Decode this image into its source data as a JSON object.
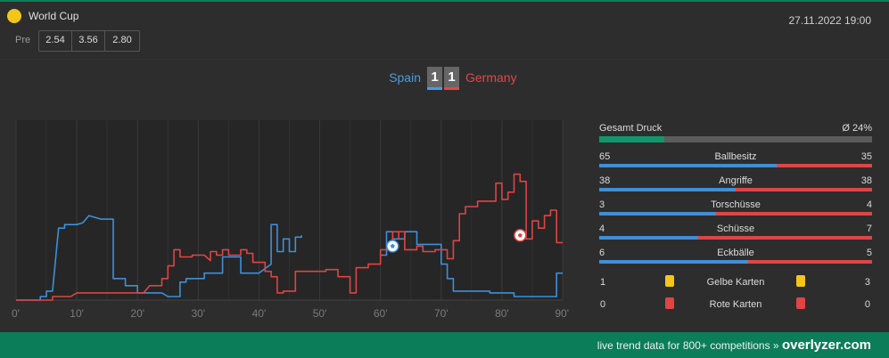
{
  "header": {
    "competition": "World Cup",
    "pre_label": "Pre",
    "odds": [
      "2.54",
      "3.56",
      "2.80"
    ],
    "datetime": "27.11.2022 19:00"
  },
  "match": {
    "home_team": "Spain",
    "away_team": "Germany",
    "home_score": "1",
    "away_score": "1",
    "home_color": "#4a9be0",
    "away_color": "#e04848"
  },
  "chart_data": {
    "type": "line",
    "x_tick_labels": [
      "0'",
      "10'",
      "20'",
      "30'",
      "40'",
      "50'",
      "60'",
      "70'",
      "80'",
      "90'"
    ],
    "xlim": [
      0,
      90
    ],
    "ylim": [
      0,
      100
    ],
    "grid": true,
    "series": [
      {
        "name": "Spain",
        "color": "#3f8fd8",
        "points": [
          [
            0,
            0
          ],
          [
            4,
            0
          ],
          [
            4,
            2
          ],
          [
            5,
            2
          ],
          [
            5,
            5
          ],
          [
            6,
            5
          ],
          [
            7,
            40
          ],
          [
            8,
            40
          ],
          [
            8,
            42
          ],
          [
            10,
            42
          ],
          [
            11,
            43
          ],
          [
            12,
            47
          ],
          [
            13,
            46
          ],
          [
            14,
            45
          ],
          [
            15,
            45
          ],
          [
            16,
            45
          ],
          [
            16,
            12
          ],
          [
            18,
            12
          ],
          [
            18,
            8
          ],
          [
            20,
            8
          ],
          [
            20,
            4
          ],
          [
            21,
            4
          ],
          [
            22,
            4
          ],
          [
            24,
            4
          ],
          [
            25,
            2
          ],
          [
            27,
            2
          ],
          [
            27,
            10
          ],
          [
            28,
            10
          ],
          [
            28,
            12
          ],
          [
            30,
            12
          ],
          [
            31,
            12
          ],
          [
            31,
            15
          ],
          [
            34,
            15
          ],
          [
            34,
            24
          ],
          [
            37,
            24
          ],
          [
            37,
            15
          ],
          [
            40,
            15
          ],
          [
            42,
            20
          ],
          [
            42,
            42
          ],
          [
            43,
            42
          ],
          [
            43,
            27
          ],
          [
            44,
            27
          ],
          [
            44,
            34
          ],
          [
            45,
            34
          ],
          [
            45,
            27
          ],
          [
            46,
            27
          ],
          [
            46,
            35
          ],
          [
            47,
            35
          ],
          [
            47,
            36
          ]
        ]
      },
      {
        "name": "Spain",
        "color": "#3f8fd8",
        "points": [
          [
            60,
            25
          ],
          [
            61,
            25
          ],
          [
            61,
            38
          ],
          [
            62,
            38
          ],
          [
            62,
            34
          ],
          [
            63,
            34
          ],
          [
            63,
            34
          ],
          [
            64,
            34
          ],
          [
            64,
            38
          ],
          [
            66,
            38
          ],
          [
            66,
            31
          ],
          [
            67,
            31
          ],
          [
            67,
            31
          ],
          [
            70,
            31
          ],
          [
            70,
            20
          ],
          [
            71,
            20
          ],
          [
            71,
            12
          ],
          [
            72,
            12
          ],
          [
            72,
            5
          ],
          [
            73,
            5
          ],
          [
            74,
            5
          ],
          [
            78,
            5
          ],
          [
            78,
            4
          ],
          [
            82,
            4
          ],
          [
            82,
            2
          ],
          [
            89,
            2
          ],
          [
            89,
            15
          ],
          [
            90,
            15
          ]
        ]
      },
      {
        "name": "Germany",
        "color": "#e04444",
        "points": [
          [
            0,
            0
          ],
          [
            6,
            0
          ],
          [
            6,
            2
          ],
          [
            9,
            2
          ],
          [
            10,
            4
          ],
          [
            12,
            4
          ],
          [
            14,
            4
          ],
          [
            18,
            4
          ],
          [
            18,
            4
          ],
          [
            21,
            4
          ],
          [
            22,
            8
          ],
          [
            24,
            8
          ],
          [
            24,
            12
          ],
          [
            25,
            12
          ],
          [
            25,
            19
          ],
          [
            26,
            19
          ],
          [
            26,
            28
          ],
          [
            27,
            28
          ],
          [
            27,
            24
          ],
          [
            29,
            24
          ],
          [
            29,
            25
          ],
          [
            30,
            25
          ],
          [
            31,
            25
          ],
          [
            32,
            22
          ],
          [
            32,
            27
          ],
          [
            33,
            27
          ],
          [
            33,
            25
          ],
          [
            34,
            25
          ],
          [
            34,
            28
          ],
          [
            35,
            28
          ],
          [
            35,
            25
          ],
          [
            37,
            25
          ],
          [
            37,
            28
          ],
          [
            38,
            28
          ],
          [
            38,
            26
          ],
          [
            39,
            26
          ],
          [
            39,
            21
          ],
          [
            41,
            21
          ],
          [
            41,
            16
          ],
          [
            42,
            16
          ],
          [
            42,
            13
          ],
          [
            43,
            13
          ],
          [
            43,
            4
          ],
          [
            44,
            4
          ],
          [
            44,
            5
          ],
          [
            46,
            5
          ],
          [
            46,
            16
          ],
          [
            51,
            16
          ],
          [
            51,
            17
          ],
          [
            53,
            17
          ],
          [
            53,
            13
          ],
          [
            55,
            13
          ],
          [
            55,
            4
          ],
          [
            56,
            4
          ],
          [
            56,
            18
          ],
          [
            57,
            18
          ],
          [
            57,
            18
          ],
          [
            58,
            18
          ],
          [
            58,
            20
          ],
          [
            60,
            20
          ],
          [
            60,
            28
          ],
          [
            62,
            28
          ],
          [
            62,
            38
          ],
          [
            63,
            38
          ],
          [
            63,
            34
          ],
          [
            63,
            38
          ],
          [
            64,
            38
          ],
          [
            64,
            28
          ],
          [
            66,
            28
          ],
          [
            66,
            30
          ],
          [
            67,
            30
          ],
          [
            67,
            27
          ],
          [
            69,
            27
          ],
          [
            69,
            28
          ],
          [
            71,
            28
          ],
          [
            71,
            23
          ],
          [
            72,
            23
          ],
          [
            72,
            33
          ],
          [
            73,
            33
          ],
          [
            73,
            48
          ],
          [
            74,
            48
          ],
          [
            74,
            52
          ],
          [
            76,
            52
          ],
          [
            76,
            55
          ],
          [
            77,
            55
          ],
          [
            77,
            55
          ],
          [
            79,
            55
          ],
          [
            79,
            65
          ],
          [
            80,
            65
          ],
          [
            80,
            56
          ],
          [
            81,
            56
          ],
          [
            81,
            60
          ],
          [
            82,
            60
          ],
          [
            82,
            70
          ],
          [
            83,
            70
          ],
          [
            83,
            66
          ],
          [
            84,
            66
          ],
          [
            84,
            34
          ],
          [
            85,
            34
          ],
          [
            85,
            44
          ],
          [
            86,
            44
          ],
          [
            86,
            40
          ],
          [
            87,
            40
          ],
          [
            87,
            47
          ],
          [
            88,
            47
          ],
          [
            88,
            50
          ],
          [
            89,
            50
          ],
          [
            89,
            32
          ],
          [
            90,
            32
          ]
        ]
      }
    ],
    "goals": [
      {
        "team": "Spain",
        "minute": 62,
        "level": 30
      },
      {
        "team": "Germany",
        "minute": 83,
        "level": 36
      }
    ]
  },
  "stats": {
    "pressure": {
      "label": "Gesamt Druck",
      "value": "Ø 24%",
      "fraction": 0.24,
      "color": "#11976b"
    },
    "bars": [
      {
        "name": "Ballbesitz",
        "home": "65",
        "away": "35",
        "home_frac": 0.65
      },
      {
        "name": "Angriffe",
        "home": "38",
        "away": "38",
        "home_frac": 0.5
      },
      {
        "name": "Torschüsse",
        "home": "3",
        "away": "4",
        "home_frac": 0.4286
      },
      {
        "name": "Schüsse",
        "home": "4",
        "away": "7",
        "home_frac": 0.3636
      },
      {
        "name": "Eckbälle",
        "home": "6",
        "away": "5",
        "home_frac": 0.5455
      }
    ],
    "cards": [
      {
        "name": "Gelbe Karten",
        "home": "1",
        "away": "3",
        "color": "#f5c518"
      },
      {
        "name": "Rote Karten",
        "home": "0",
        "away": "0",
        "color": "#e04444"
      }
    ]
  },
  "footer": {
    "text": "live trend data for 800+ competitions »",
    "brand": "overlyzer.com"
  }
}
